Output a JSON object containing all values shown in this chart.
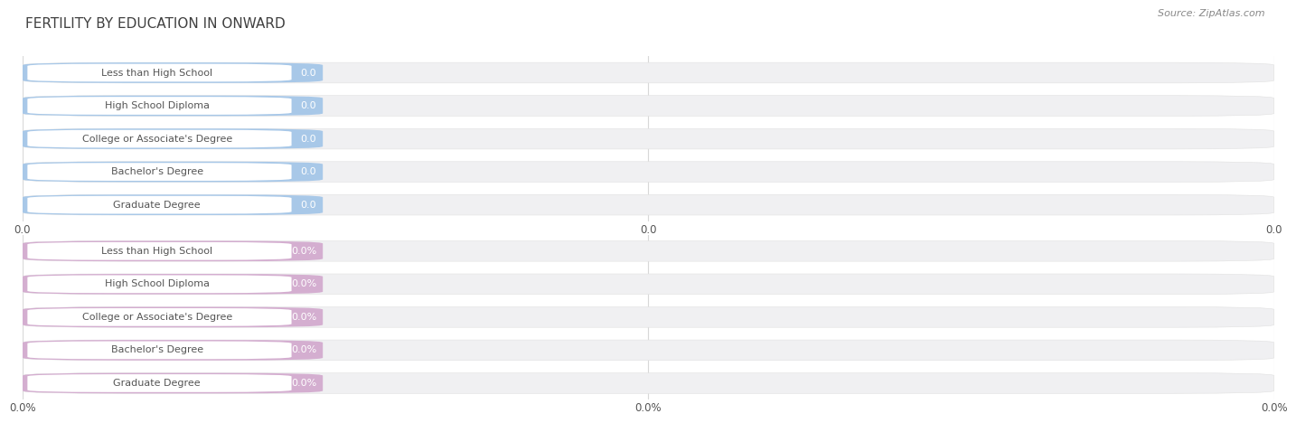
{
  "title": "FERTILITY BY EDUCATION IN ONWARD",
  "source": "Source: ZipAtlas.com",
  "categories": [
    "Less than High School",
    "High School Diploma",
    "College or Associate's Degree",
    "Bachelor's Degree",
    "Graduate Degree"
  ],
  "values_top": [
    0.0,
    0.0,
    0.0,
    0.0,
    0.0
  ],
  "values_bottom": [
    0.0,
    0.0,
    0.0,
    0.0,
    0.0
  ],
  "bar_color_top": "#a8c8e8",
  "bar_color_bottom": "#d4aed0",
  "bar_bg_color": "#f0f0f2",
  "background_color": "#ffffff",
  "title_color": "#404040",
  "text_color": "#555555",
  "value_text_color_top": "#6090c0",
  "value_text_color_bottom": "#b070a8",
  "grid_color": "#d8d8d8",
  "xtick_labels_top": [
    "0.0",
    "0.0",
    "0.0"
  ],
  "xtick_labels_bottom": [
    "0.0%",
    "0.0%",
    "0.0%"
  ],
  "title_fontsize": 11,
  "source_fontsize": 8,
  "label_fontsize": 8,
  "value_fontsize": 8,
  "tick_fontsize": 8.5
}
